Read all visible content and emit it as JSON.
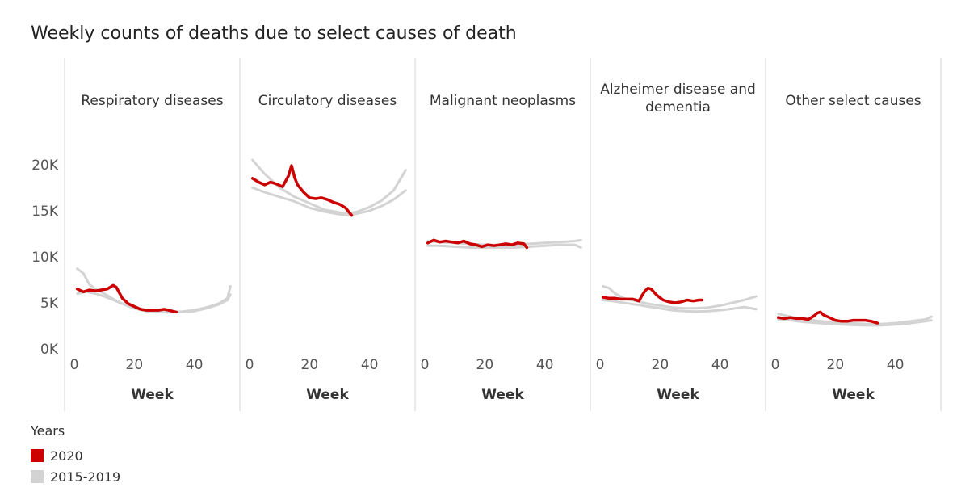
{
  "title": "Weekly counts of deaths due to select causes of death",
  "legend": {
    "title": "Years",
    "items": [
      {
        "label": "2020",
        "color": "#cc0000"
      },
      {
        "label": "2015-2019",
        "color": "#d3d3d3"
      }
    ]
  },
  "chart_data": {
    "type": "line",
    "title": "Weekly counts of deaths due to select causes of death",
    "xlabel": "Week",
    "xlim": [
      0,
      53
    ],
    "xticks": [
      0,
      20,
      40
    ],
    "ylim": [
      0,
      22000
    ],
    "yticks": [
      0,
      5000,
      10000,
      15000,
      20000
    ],
    "ytick_labels": [
      "0K",
      "5K",
      "10K",
      "15K",
      "20K"
    ],
    "panels": [
      {
        "name": "Respiratory diseases",
        "label_lines": [
          "Respiratory diseases"
        ],
        "series": [
          {
            "name": "2020",
            "x": [
              1,
              3,
              5,
              7,
              9,
              11,
              13,
              14,
              16,
              18,
              20,
              22,
              24,
              26,
              28,
              30,
              32,
              34
            ],
            "y": [
              6500,
              6200,
              6400,
              6300,
              6400,
              6500,
              6900,
              6700,
              5500,
              4900,
              4600,
              4300,
              4200,
              4200,
              4200,
              4300,
              4150,
              4000
            ]
          },
          {
            "name": "2015-2019",
            "x": [
              1,
              3,
              5,
              7,
              10,
              13,
              16,
              20,
              24,
              28,
              32,
              36,
              40,
              44,
              48,
              51,
              52
            ],
            "y": [
              8700,
              8200,
              7000,
              6500,
              6000,
              5400,
              4900,
              4500,
              4200,
              4100,
              4000,
              4050,
              4200,
              4500,
              4900,
              5500,
              6800
            ]
          },
          {
            "name": "2015-2019",
            "x": [
              1,
              4,
              7,
              10,
              13,
              16,
              20,
              24,
              28,
              32,
              36,
              40,
              44,
              48,
              51,
              52
            ],
            "y": [
              6000,
              6200,
              6000,
              5700,
              5300,
              4900,
              4400,
              4100,
              4000,
              3950,
              4000,
              4100,
              4400,
              4800,
              5300,
              5900
            ]
          }
        ]
      },
      {
        "name": "Circulatory diseases",
        "label_lines": [
          "Circulatory diseases"
        ],
        "series": [
          {
            "name": "2020",
            "x": [
              1,
              3,
              5,
              7,
              9,
              11,
              13,
              14,
              15,
              16,
              18,
              20,
              22,
              24,
              26,
              28,
              30,
              32,
              34
            ],
            "y": [
              18500,
              18100,
              17800,
              18100,
              17900,
              17600,
              18800,
              19900,
              18600,
              17800,
              17000,
              16400,
              16300,
              16400,
              16200,
              15900,
              15700,
              15300,
              14500
            ]
          },
          {
            "name": "2015-2019",
            "x": [
              1,
              5,
              10,
              15,
              20,
              25,
              30,
              33,
              36,
              40,
              44,
              48,
              52
            ],
            "y": [
              20500,
              19000,
              17500,
              16500,
              15800,
              15100,
              14800,
              14700,
              14900,
              15400,
              16100,
              17200,
              19400
            ]
          },
          {
            "name": "2015-2019",
            "x": [
              1,
              5,
              10,
              15,
              20,
              25,
              30,
              33,
              36,
              40,
              44,
              48,
              52
            ],
            "y": [
              17500,
              17000,
              16500,
              16000,
              15300,
              14900,
              14600,
              14500,
              14700,
              15000,
              15500,
              16200,
              17200
            ]
          }
        ]
      },
      {
        "name": "Malignant neoplasms",
        "label_lines": [
          "Malignant neoplasms"
        ],
        "series": [
          {
            "name": "2020",
            "x": [
              1,
              3,
              5,
              7,
              9,
              11,
              13,
              15,
              17,
              19,
              21,
              23,
              25,
              27,
              29,
              31,
              33,
              34
            ],
            "y": [
              11500,
              11800,
              11600,
              11700,
              11600,
              11500,
              11700,
              11400,
              11300,
              11100,
              11300,
              11200,
              11300,
              11400,
              11300,
              11500,
              11400,
              11000
            ]
          },
          {
            "name": "2015-2019",
            "x": [
              1,
              5,
              10,
              15,
              20,
              25,
              30,
              35,
              40,
              45,
              50,
              52
            ],
            "y": [
              11700,
              11600,
              11500,
              11400,
              11300,
              11300,
              11300,
              11400,
              11500,
              11600,
              11700,
              11800
            ]
          },
          {
            "name": "2015-2019",
            "x": [
              1,
              5,
              10,
              15,
              20,
              25,
              30,
              35,
              40,
              45,
              50,
              52
            ],
            "y": [
              11200,
              11200,
              11100,
              11000,
              11000,
              11000,
              11000,
              11100,
              11200,
              11300,
              11300,
              11000
            ]
          }
        ]
      },
      {
        "name": "Alzheimer disease and dementia",
        "label_lines": [
          "Alzheimer disease and",
          "dementia"
        ],
        "series": [
          {
            "name": "2020",
            "x": [
              1,
              3,
              5,
              7,
              9,
              11,
              13,
              14,
              15,
              16,
              17,
              19,
              21,
              23,
              25,
              27,
              29,
              31,
              33,
              34
            ],
            "y": [
              5600,
              5500,
              5500,
              5400,
              5400,
              5400,
              5200,
              5800,
              6300,
              6600,
              6500,
              5800,
              5300,
              5100,
              5000,
              5100,
              5300,
              5200,
              5300,
              5300
            ]
          },
          {
            "name": "2015-2019",
            "x": [
              1,
              3,
              5,
              8,
              12,
              16,
              20,
              24,
              28,
              32,
              36,
              40,
              44,
              48,
              52
            ],
            "y": [
              6800,
              6600,
              6000,
              5500,
              5200,
              4900,
              4700,
              4500,
              4400,
              4400,
              4500,
              4700,
              5000,
              5300,
              5700
            ]
          },
          {
            "name": "2015-2019",
            "x": [
              1,
              4,
              8,
              12,
              16,
              20,
              24,
              28,
              32,
              36,
              40,
              44,
              48,
              52
            ],
            "y": [
              5300,
              5200,
              5000,
              4800,
              4600,
              4400,
              4200,
              4100,
              4050,
              4100,
              4200,
              4350,
              4550,
              4300
            ]
          }
        ]
      },
      {
        "name": "Other select causes",
        "label_lines": [
          "Other select causes"
        ],
        "series": [
          {
            "name": "2020",
            "x": [
              1,
              3,
              5,
              7,
              9,
              11,
              13,
              14,
              15,
              16,
              18,
              20,
              22,
              24,
              26,
              28,
              30,
              32,
              34
            ],
            "y": [
              3400,
              3300,
              3400,
              3300,
              3300,
              3200,
              3600,
              3900,
              4000,
              3700,
              3400,
              3100,
              3000,
              3000,
              3100,
              3100,
              3100,
              3000,
              2800
            ]
          },
          {
            "name": "2015-2019",
            "x": [
              1,
              5,
              10,
              15,
              20,
              25,
              30,
              35,
              40,
              45,
              50,
              52
            ],
            "y": [
              3800,
              3500,
              3200,
              3000,
              2900,
              2800,
              2700,
              2700,
              2800,
              3000,
              3200,
              3500
            ]
          },
          {
            "name": "2015-2019",
            "x": [
              1,
              5,
              10,
              15,
              20,
              25,
              30,
              35,
              40,
              45,
              50,
              52
            ],
            "y": [
              3200,
              3100,
              2900,
              2800,
              2700,
              2600,
              2550,
              2550,
              2650,
              2800,
              3000,
              3100
            ]
          }
        ]
      }
    ]
  }
}
